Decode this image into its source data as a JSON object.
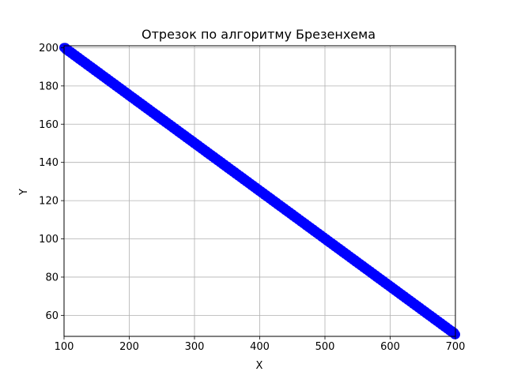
{
  "chart_data": {
    "type": "scatter",
    "title": "Отрезок по алгоритму Брезенхема",
    "xlabel": "X",
    "ylabel": "Y",
    "xlim": [
      100,
      700
    ],
    "ylim": [
      49,
      201
    ],
    "x_ticks": [
      100,
      200,
      300,
      400,
      500,
      600,
      700
    ],
    "y_ticks": [
      60,
      80,
      100,
      120,
      140,
      160,
      180,
      200
    ],
    "x_tick_labels": [
      "100",
      "200",
      "300",
      "400",
      "500",
      "600",
      "700"
    ],
    "y_tick_labels": [
      "60",
      "80",
      "100",
      "120",
      "140",
      "160",
      "180",
      "200"
    ],
    "grid": true,
    "series": [
      {
        "color": "#0000ff",
        "marker": "circle",
        "start": [
          100,
          200
        ],
        "end": [
          700,
          50
        ],
        "x": [
          100,
          125,
          150,
          175,
          200,
          225,
          250,
          275,
          300,
          325,
          350,
          375,
          400,
          425,
          450,
          475,
          500,
          525,
          550,
          575,
          600,
          625,
          650,
          675,
          700
        ],
        "y": [
          200,
          194,
          188,
          181,
          175,
          169,
          163,
          156,
          150,
          144,
          138,
          131,
          125,
          119,
          113,
          106,
          100,
          94,
          88,
          81,
          75,
          69,
          63,
          56,
          50
        ]
      }
    ]
  }
}
